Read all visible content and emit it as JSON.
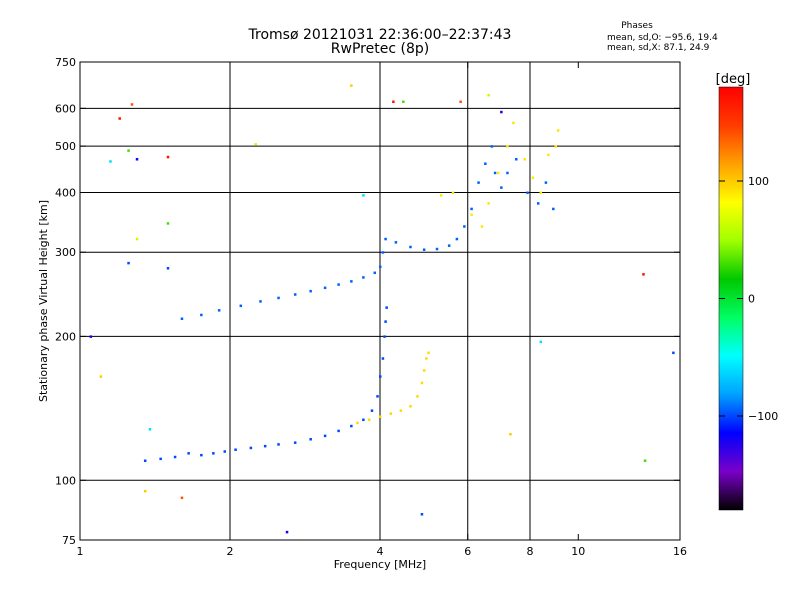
{
  "header": {
    "title_line1": "Tromsø 20121031 22:36:00–22:37:43",
    "title_line2": "RwPretec (8p)",
    "phase_title": "Phases",
    "phase_o": "mean, sd,O: −95.6, 19.4",
    "phase_x": "mean, sd,X:  87.1, 24.9"
  },
  "colorbar": {
    "unit": "[deg]",
    "ticks": [
      "100",
      "0",
      "−100"
    ],
    "tick_values": [
      100,
      0,
      -100
    ],
    "range": [
      -180,
      180
    ],
    "colors": [
      "#000000",
      "#7a00c8",
      "#0000ff",
      "#00a0ff",
      "#00ffff",
      "#00ff64",
      "#00c800",
      "#a0ff00",
      "#ffff00",
      "#ffa000",
      "#ff3c00",
      "#ff0000"
    ]
  },
  "chart_data": {
    "type": "scatter",
    "xlabel": "Frequency [MHz]",
    "ylabel": "Stationary phase Virtual Height [km]",
    "xscale": "log",
    "yscale": "log",
    "xlim": [
      1,
      16
    ],
    "ylim": [
      75,
      750
    ],
    "xticks": [
      1,
      2,
      4,
      6,
      8,
      10,
      16
    ],
    "xtick_labels": [
      "1",
      "2",
      "4",
      "6",
      "8",
      "10",
      "16"
    ],
    "yticks": [
      75,
      100,
      200,
      300,
      400,
      500,
      600,
      750
    ],
    "ytick_labels": [
      "75",
      "100",
      "200",
      "300",
      "400",
      "500",
      "600",
      "750"
    ],
    "vertical_gridlines": [
      2,
      4,
      6,
      8
    ],
    "horizontal_gridlines": [
      100,
      200,
      300,
      400,
      500,
      600
    ],
    "grid": true,
    "series": [
      {
        "desc": "O-mode E trace",
        "phase_deg": -100,
        "points": [
          [
            1.35,
            110
          ],
          [
            1.45,
            111
          ],
          [
            1.55,
            112
          ],
          [
            1.65,
            114
          ],
          [
            1.75,
            113
          ],
          [
            1.85,
            114
          ],
          [
            1.95,
            115
          ],
          [
            2.05,
            116
          ],
          [
            2.2,
            117
          ],
          [
            2.35,
            118
          ],
          [
            2.5,
            119
          ],
          [
            2.7,
            120
          ],
          [
            2.9,
            122
          ],
          [
            3.1,
            124
          ],
          [
            3.3,
            127
          ],
          [
            3.5,
            130
          ],
          [
            3.7,
            134
          ],
          [
            3.85,
            140
          ],
          [
            3.95,
            150
          ],
          [
            4.0,
            165
          ],
          [
            4.05,
            180
          ],
          [
            4.08,
            200
          ],
          [
            4.1,
            215
          ],
          [
            4.12,
            230
          ]
        ]
      },
      {
        "desc": "O-mode F trace",
        "phase_deg": -95,
        "points": [
          [
            1.6,
            218
          ],
          [
            1.75,
            222
          ],
          [
            1.9,
            227
          ],
          [
            2.1,
            232
          ],
          [
            2.3,
            237
          ],
          [
            2.5,
            241
          ],
          [
            2.7,
            245
          ],
          [
            2.9,
            249
          ],
          [
            3.1,
            253
          ],
          [
            3.3,
            257
          ],
          [
            3.5,
            261
          ],
          [
            3.7,
            266
          ],
          [
            3.9,
            272
          ],
          [
            4.0,
            280
          ],
          [
            4.05,
            300
          ],
          [
            4.1,
            320
          ],
          [
            4.3,
            315
          ],
          [
            4.6,
            308
          ],
          [
            4.9,
            304
          ],
          [
            5.2,
            305
          ],
          [
            5.5,
            310
          ],
          [
            5.7,
            320
          ],
          [
            5.9,
            340
          ],
          [
            6.1,
            370
          ],
          [
            6.3,
            420
          ],
          [
            6.5,
            460
          ],
          [
            6.7,
            500
          ],
          [
            6.8,
            440
          ],
          [
            7.0,
            410
          ],
          [
            7.2,
            440
          ],
          [
            7.5,
            470
          ],
          [
            7.9,
            400
          ],
          [
            8.3,
            380
          ],
          [
            8.6,
            420
          ],
          [
            8.9,
            370
          ]
        ]
      },
      {
        "desc": "X-mode E trace",
        "phase_deg": 95,
        "points": [
          [
            3.6,
            132
          ],
          [
            3.8,
            134
          ],
          [
            4.0,
            136
          ],
          [
            4.2,
            138
          ],
          [
            4.4,
            140
          ],
          [
            4.6,
            143
          ],
          [
            4.75,
            150
          ],
          [
            4.85,
            160
          ],
          [
            4.9,
            170
          ],
          [
            4.95,
            180
          ],
          [
            5.0,
            185
          ]
        ]
      },
      {
        "desc": "X-mode F trace",
        "phase_deg": 90,
        "points": [
          [
            5.3,
            395
          ],
          [
            5.6,
            400
          ],
          [
            6.1,
            360
          ],
          [
            6.4,
            340
          ],
          [
            6.6,
            380
          ],
          [
            6.9,
            440
          ],
          [
            7.2,
            500
          ],
          [
            7.4,
            560
          ],
          [
            7.8,
            470
          ],
          [
            8.1,
            430
          ],
          [
            8.4,
            400
          ],
          [
            8.7,
            480
          ],
          [
            9.0,
            500
          ],
          [
            9.1,
            540
          ]
        ]
      },
      {
        "desc": "scattered echoes",
        "phase_deg": null,
        "points": [
          [
            1.05,
            200
          ],
          [
            1.1,
            165
          ],
          [
            1.15,
            465
          ],
          [
            1.2,
            572
          ],
          [
            1.25,
            490
          ],
          [
            1.25,
            285
          ],
          [
            1.27,
            612
          ],
          [
            1.3,
            320
          ],
          [
            1.3,
            470
          ],
          [
            1.35,
            95
          ],
          [
            1.38,
            128
          ],
          [
            1.5,
            475
          ],
          [
            1.5,
            345
          ],
          [
            1.5,
            278
          ],
          [
            1.6,
            92
          ],
          [
            2.25,
            505
          ],
          [
            2.6,
            78
          ],
          [
            3.5,
            670
          ],
          [
            3.7,
            395
          ],
          [
            4.25,
            620
          ],
          [
            4.45,
            620
          ],
          [
            4.85,
            85
          ],
          [
            5.8,
            620
          ],
          [
            6.6,
            640
          ],
          [
            7.0,
            590
          ],
          [
            7.3,
            125
          ],
          [
            8.4,
            195
          ],
          [
            13.5,
            270
          ],
          [
            13.6,
            110
          ],
          [
            15.5,
            185
          ]
        ]
      }
    ]
  }
}
